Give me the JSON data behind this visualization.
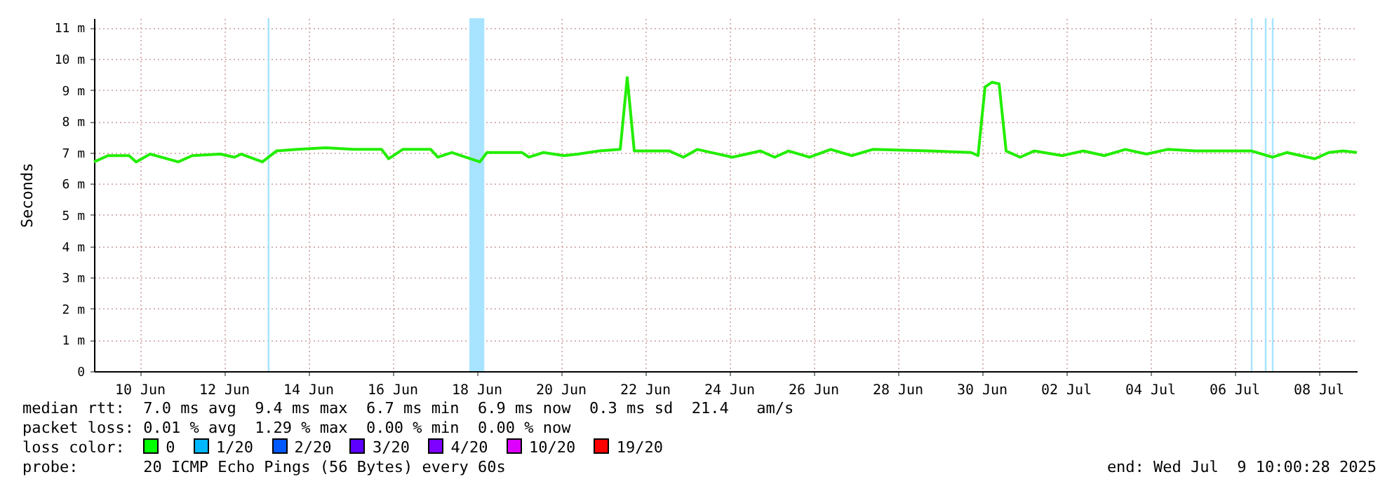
{
  "chart_data": {
    "type": "line",
    "ylabel": "Seconds",
    "annotations": [
      "median rtt:  7.0 ms avg  9.4 ms max  6.7 ms min  6.9 ms now  0.3 ms sd  21.4   am/s",
      "packet loss: 0.01 % avg  1.29 % max  0.00 % min  0.00 % now",
      "loss color:   0   1/20   2/20   3/20   4/20   10/20   19/20",
      "probe:       20 ICMP Echo Pings (56 Bytes) every 60s",
      "end: Wed Jul  9 10:00:28 2025"
    ],
    "x": [
      "2025-06-09T10:00",
      "2025-06-09T18:00",
      "2025-06-10T06:00",
      "2025-06-10T10:00",
      "2025-06-10T18:00",
      "2025-06-11T10:00",
      "2025-06-11T18:00",
      "2025-06-12T10:00",
      "2025-06-12T18:00",
      "2025-06-12T22:00",
      "2025-06-13T10:00",
      "2025-06-13T18:00",
      "2025-06-14T06:00",
      "2025-06-14T22:00",
      "2025-06-15T14:00",
      "2025-06-16T06:00",
      "2025-06-16T10:00",
      "2025-06-16T18:00",
      "2025-06-17T10:00",
      "2025-06-17T14:00",
      "2025-06-17T22:00",
      "2025-06-18T14:00",
      "2025-06-18T18:00",
      "2025-06-19T14:00",
      "2025-06-19T18:00",
      "2025-06-20T02:00",
      "2025-06-20T14:00",
      "2025-06-20T22:00",
      "2025-06-21T10:00",
      "2025-06-21T22:00",
      "2025-06-22T02:00",
      "2025-06-22T06:00",
      "2025-06-23T02:00",
      "2025-06-23T10:00",
      "2025-06-23T18:00",
      "2025-06-24T14:00",
      "2025-06-25T06:00",
      "2025-06-25T14:00",
      "2025-06-25T22:00",
      "2025-06-26T10:00",
      "2025-06-26T22:00",
      "2025-06-27T10:00",
      "2025-06-27T22:00",
      "2025-06-29T06:00",
      "2025-06-30T06:00",
      "2025-06-30T10:00",
      "2025-06-30T14:00",
      "2025-06-30T18:00",
      "2025-06-30T22:00",
      "2025-07-01T02:00",
      "2025-07-01T10:00",
      "2025-07-01T18:00",
      "2025-07-02T10:00",
      "2025-07-02T22:00",
      "2025-07-03T10:00",
      "2025-07-03T22:00",
      "2025-07-04T10:00",
      "2025-07-04T22:00",
      "2025-07-05T14:00",
      "2025-07-06T22:00",
      "2025-07-07T10:00",
      "2025-07-07T18:00",
      "2025-07-08T10:00",
      "2025-07-08T18:00",
      "2025-07-09T02:00",
      "2025-07-09T10:00"
    ],
    "series": [
      {
        "color": "#22ee00",
        "values": [
          6.7,
          6.9,
          6.9,
          6.7,
          6.95,
          6.7,
          6.9,
          6.95,
          6.85,
          6.95,
          6.7,
          7.05,
          7.1,
          7.15,
          7.1,
          7.1,
          6.8,
          7.1,
          7.1,
          6.85,
          7.0,
          6.7,
          7.0,
          7.0,
          6.85,
          7.0,
          6.9,
          6.95,
          7.05,
          7.1,
          9.4,
          7.05,
          7.05,
          6.85,
          7.1,
          6.85,
          7.05,
          6.85,
          7.05,
          6.85,
          7.1,
          6.9,
          7.1,
          7.05,
          7.0,
          6.9,
          9.1,
          9.25,
          9.2,
          7.05,
          6.85,
          7.05,
          6.9,
          7.05,
          6.9,
          7.1,
          6.95,
          7.1,
          7.05,
          7.05,
          6.85,
          7.0,
          6.8,
          7.0,
          7.05,
          7.0
        ]
      }
    ],
    "xlim": [
      "2025-06-09T10:00",
      "2025-07-09T10:00"
    ],
    "xticks": [
      {
        "value": "2025-06-10T12:00",
        "label": "10 Jun"
      },
      {
        "value": "2025-06-12T12:00",
        "label": "12 Jun"
      },
      {
        "value": "2025-06-14T12:00",
        "label": "14 Jun"
      },
      {
        "value": "2025-06-16T12:00",
        "label": "16 Jun"
      },
      {
        "value": "2025-06-18T12:00",
        "label": "18 Jun"
      },
      {
        "value": "2025-06-20T12:00",
        "label": "20 Jun"
      },
      {
        "value": "2025-06-22T12:00",
        "label": "22 Jun"
      },
      {
        "value": "2025-06-24T12:00",
        "label": "24 Jun"
      },
      {
        "value": "2025-06-26T12:00",
        "label": "26 Jun"
      },
      {
        "value": "2025-06-28T12:00",
        "label": "28 Jun"
      },
      {
        "value": "2025-06-30T12:00",
        "label": "30 Jun"
      },
      {
        "value": "2025-07-02T12:00",
        "label": "02 Jul"
      },
      {
        "value": "2025-07-04T12:00",
        "label": "04 Jul"
      },
      {
        "value": "2025-07-06T12:00",
        "label": "06 Jul"
      },
      {
        "value": "2025-07-08T12:00",
        "label": "08 Jul"
      }
    ],
    "ylim": [
      0,
      11.3
    ],
    "yticks": [
      0,
      {
        "value": 1,
        "label": "1 m"
      },
      {
        "value": 2,
        "label": "2 m"
      },
      {
        "value": 3,
        "label": "3 m"
      },
      {
        "value": 4,
        "label": "4 m"
      },
      {
        "value": 5,
        "label": "5 m"
      },
      {
        "value": 6,
        "label": "6 m"
      },
      {
        "value": 7,
        "label": "7 m"
      },
      {
        "value": 8,
        "label": "8 m"
      },
      {
        "value": 9,
        "label": "9 m"
      },
      {
        "value": 10,
        "label": "10 m"
      },
      {
        "value": 11,
        "label": "11 m"
      }
    ],
    "bands": [
      {
        "axis": "x",
        "from": "2025-06-13T13:00",
        "to": "2025-06-13T14:00",
        "color": "#a8e4ff"
      },
      {
        "axis": "x",
        "from": "2025-06-18T08:00",
        "to": "2025-06-18T16:30",
        "color": "#a8e4ff"
      },
      {
        "axis": "x",
        "from": "2025-07-06T21:30",
        "to": "2025-07-06T22:30",
        "color": "#a8e4ff"
      },
      {
        "axis": "x",
        "from": "2025-07-07T05:30",
        "to": "2025-07-07T06:30",
        "color": "#a8e4ff"
      },
      {
        "axis": "x",
        "from": "2025-07-07T09:30",
        "to": "2025-07-07T10:30",
        "color": "#a8e4ff"
      }
    ],
    "grid": true,
    "marker": "none",
    "line_style": "solid"
  }
}
